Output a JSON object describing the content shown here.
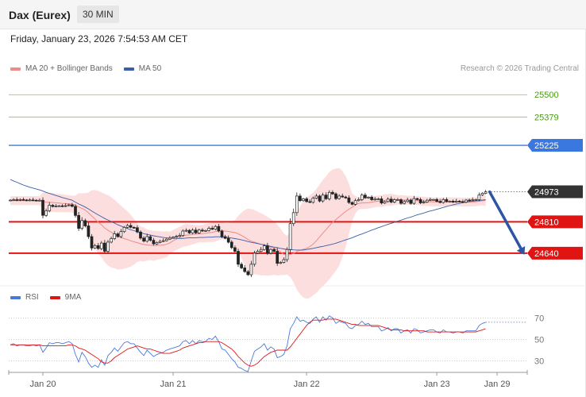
{
  "header": {
    "instrument": "Dax (Eurex)",
    "timeframe": "30 MIN",
    "datetime": "Friday, January 23, 2026 7:54:53 AM CET"
  },
  "legend": {
    "ma20_bb": "MA 20 + Bollinger Bands",
    "ma50": "MA 50",
    "rsi": "RSI",
    "rsi_ma": "9MA"
  },
  "copyright": "Research © 2026 Trading Central",
  "colors": {
    "resistance": "#3a78e0",
    "support": "#e11414",
    "target_line": "#8cc152",
    "target_text": "#4a9a1a",
    "candle": "#222222",
    "bollinger_fill": "#fcdede",
    "ma20": "#f08a8a",
    "ma50": "#3a5ea8",
    "arrow": "#2c56a3",
    "rsi": "#4a78d8",
    "rsi_ma": "#e11414"
  },
  "chart_data": [
    {
      "type": "candlestick",
      "x_labels": [
        "Jan 20",
        "Jan 21",
        "Jan 22",
        "Jan 23",
        "Jan 29"
      ],
      "ylim": [
        24480,
        25600
      ],
      "levels": [
        {
          "value": 25500,
          "role": "target"
        },
        {
          "value": 25379,
          "role": "target"
        },
        {
          "value": 25225,
          "role": "resistance"
        },
        {
          "value": 24973,
          "role": "last"
        },
        {
          "value": 24810,
          "role": "support"
        },
        {
          "value": 24640,
          "role": "support"
        }
      ],
      "forecast": {
        "from": 24973,
        "to": 24640,
        "direction": "down"
      },
      "close": [
        24928,
        24930,
        24927,
        24931,
        24929,
        24926,
        24929,
        24927,
        24925,
        24927,
        24845,
        24870,
        24900,
        24893,
        24896,
        24897,
        24894,
        24898,
        24902,
        24894,
        24845,
        24775,
        24817,
        24788,
        24730,
        24668,
        24681,
        24665,
        24695,
        24650,
        24700,
        24719,
        24745,
        24730,
        24757,
        24780,
        24790,
        24780,
        24778,
        24755,
        24722,
        24705,
        24730,
        24710,
        24690,
        24698,
        24704,
        24708,
        24716,
        24722,
        24727,
        24731,
        24736,
        24760,
        24764,
        24750,
        24765,
        24750,
        24765,
        24760,
        24763,
        24775,
        24770,
        24785,
        24760,
        24730,
        24721,
        24700,
        24670,
        24650,
        24580,
        24560,
        24540,
        24523,
        24580,
        24640,
        24650,
        24660,
        24680,
        24640,
        24660,
        24650,
        24585,
        24590,
        24605,
        24660,
        24800,
        24860,
        24950,
        24925,
        24935,
        24920,
        24916,
        24938,
        24950,
        24923,
        24955,
        24935,
        24970,
        24962,
        24936,
        24950,
        24945,
        24940,
        24915,
        24905,
        24925,
        24930,
        24955,
        24940,
        24944,
        24930,
        24933,
        24935,
        24912,
        24920,
        24933,
        24917,
        24930,
        24930,
        24910,
        24920,
        24928,
        24910,
        24936,
        24931,
        24913,
        24917,
        24927,
        24931,
        24931,
        24921,
        24915,
        24931,
        24920,
        24922,
        24917,
        24922,
        24920,
        24917,
        24928,
        24926,
        24930,
        24930,
        24955,
        24965,
        24973
      ],
      "ma20": [
        24925,
        24925,
        24925,
        24925,
        24925,
        24925,
        24925,
        24925,
        24925,
        24925,
        24921,
        24917,
        24916,
        24915,
        24913,
        24912,
        24910,
        24909,
        24908,
        24906,
        24900,
        24890,
        24883,
        24874,
        24859,
        24842,
        24826,
        24808,
        24794,
        24776,
        24764,
        24753,
        24744,
        24732,
        24725,
        24719,
        24714,
        24707,
        24702,
        24697,
        24691,
        24688,
        24684,
        24683,
        24680,
        24682,
        24683,
        24685,
        24688,
        24696,
        24707,
        24716,
        24724,
        24733,
        24738,
        24739,
        24741,
        24743,
        24745,
        24746,
        24748,
        24751,
        24753,
        24758,
        24760,
        24761,
        24760,
        24758,
        24755,
        24752,
        24745,
        24736,
        24726,
        24714,
        24705,
        24700,
        24694,
        24688,
        24684,
        24677,
        24673,
        24668,
        24657,
        24647,
        24634,
        24629,
        24633,
        24638,
        24649,
        24656,
        24661,
        24666,
        24676,
        24689,
        24707,
        24728,
        24749,
        24768,
        24789,
        24808,
        24822,
        24837,
        24852,
        24866,
        24879,
        24889,
        24903,
        24910,
        24913,
        24913,
        24914,
        24917,
        24920,
        24922,
        24922,
        24927,
        24929,
        24929,
        24930,
        24929,
        24928,
        24928,
        24927,
        24927,
        24926,
        24926,
        24923,
        24922,
        24920,
        24919,
        24918,
        24918,
        24917,
        24917,
        24918,
        24919,
        24918,
        24918,
        24918,
        24917,
        24917,
        24917,
        24918,
        24919,
        24922,
        24924,
        24927
      ],
      "ma50": [
        25040,
        25032,
        25025,
        25017,
        25010,
        25004,
        24998,
        24993,
        24988,
        24983,
        24977,
        24970,
        24964,
        24959,
        24953,
        24948,
        24942,
        24937,
        24932,
        24927,
        24917,
        24907,
        24899,
        24890,
        24880,
        24869,
        24858,
        24848,
        24838,
        24828,
        24820,
        24811,
        24803,
        24794,
        24787,
        24780,
        24774,
        24767,
        24762,
        24756,
        24751,
        24746,
        24742,
        24738,
        24734,
        24731,
        24728,
        24725,
        24723,
        24721,
        24721,
        24720,
        24720,
        24720,
        24722,
        24723,
        24724,
        24724,
        24725,
        24725,
        24726,
        24727,
        24727,
        24729,
        24729,
        24727,
        24726,
        24725,
        24722,
        24719,
        24716,
        24712,
        24708,
        24703,
        24699,
        24696,
        24692,
        24688,
        24685,
        24681,
        24677,
        24673,
        24670,
        24666,
        24663,
        24660,
        24659,
        24658,
        24657,
        24657,
        24657,
        24660,
        24663,
        24666,
        24670,
        24674,
        24677,
        24681,
        24685,
        24689,
        24694,
        24700,
        24706,
        24712,
        24718,
        24724,
        24731,
        24738,
        24744,
        24751,
        24758,
        24765,
        24771,
        24778,
        24784,
        24790,
        24796,
        24802,
        24808,
        24814,
        24819,
        24825,
        24831,
        24836,
        24842,
        24848,
        24853,
        24858,
        24864,
        24869,
        24873,
        24878,
        24883,
        24888,
        24893,
        24898,
        24902,
        24906,
        24910,
        24914,
        24917,
        24920,
        24922,
        24924,
        24926,
        24928,
        24930
      ]
    },
    {
      "type": "line",
      "title": "RSI",
      "yticks": [
        30,
        50,
        70
      ],
      "ylim": [
        20,
        80
      ],
      "series": [
        {
          "name": "RSI",
          "values": [
            45,
            46,
            44,
            45,
            45,
            44,
            44,
            45,
            44,
            45,
            38,
            42,
            47,
            46,
            47,
            47,
            46,
            47,
            48,
            46,
            36,
            29,
            38,
            34,
            28,
            24,
            26,
            24,
            31,
            26,
            35,
            38,
            42,
            39,
            43,
            47,
            48,
            46,
            46,
            42,
            38,
            35,
            40,
            37,
            34,
            36,
            37,
            38,
            40,
            41,
            42,
            43,
            44,
            48,
            49,
            46,
            49,
            46,
            49,
            48,
            48,
            51,
            50,
            53,
            48,
            41,
            40,
            36,
            32,
            29,
            24,
            23,
            21,
            20,
            30,
            39,
            41,
            43,
            46,
            40,
            43,
            41,
            33,
            34,
            36,
            44,
            60,
            65,
            71,
            67,
            68,
            66,
            65,
            69,
            71,
            66,
            71,
            68,
            72,
            70,
            65,
            67,
            66,
            65,
            61,
            60,
            63,
            64,
            67,
            64,
            65,
            62,
            62,
            62,
            58,
            59,
            61,
            58,
            60,
            60,
            56,
            58,
            59,
            56,
            60,
            59,
            56,
            57,
            58,
            59,
            59,
            57,
            56,
            59,
            57,
            57,
            56,
            57,
            57,
            56,
            58,
            58,
            58,
            58,
            63,
            65,
            66
          ]
        },
        {
          "name": "9MA",
          "values": [
            45,
            45,
            45,
            45,
            45,
            45,
            45,
            45,
            45,
            45,
            44,
            44,
            44,
            44,
            44,
            44,
            44,
            44,
            45,
            45,
            44,
            42,
            41,
            40,
            38,
            36,
            34,
            32,
            29,
            28,
            28,
            30,
            33,
            35,
            37,
            39,
            41,
            42,
            43,
            44,
            43,
            42,
            41,
            41,
            40,
            39,
            38,
            37,
            37,
            37,
            38,
            39,
            40,
            42,
            43,
            44,
            45,
            46,
            47,
            47,
            48,
            48,
            48,
            48,
            48,
            47,
            45,
            43,
            41,
            38,
            34,
            31,
            28,
            26,
            25,
            26,
            28,
            31,
            34,
            36,
            38,
            39,
            40,
            40,
            40,
            40,
            43,
            47,
            51,
            55,
            59,
            63,
            66,
            68,
            68,
            68,
            68,
            69,
            69,
            69,
            69,
            68,
            67,
            66,
            65,
            64,
            64,
            63,
            63,
            63,
            63,
            63,
            63,
            63,
            62,
            61,
            60,
            59,
            59,
            59,
            59,
            58,
            58,
            58,
            58,
            58,
            58,
            58,
            57,
            57,
            57,
            57,
            57,
            57,
            57,
            57,
            57,
            57,
            57,
            57,
            57,
            57,
            57,
            57,
            58,
            59,
            60
          ]
        }
      ]
    }
  ]
}
